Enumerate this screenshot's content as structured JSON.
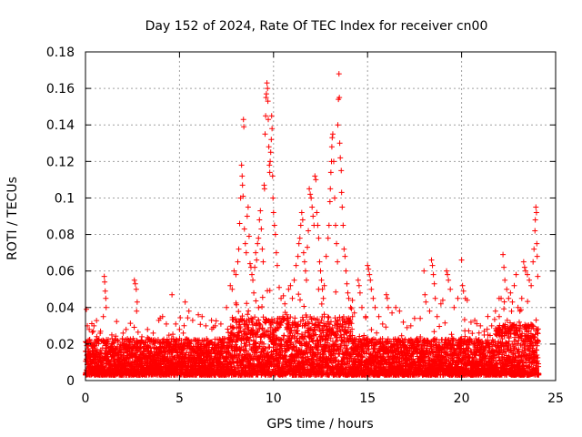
{
  "chart_data": {
    "type": "scatter",
    "title": "Day 152 of 2024, Rate Of TEC Index for receiver cn00",
    "xlabel": "GPS time / hours",
    "ylabel": "ROTI / TECUs",
    "xlim": [
      0,
      25
    ],
    "ylim": [
      0,
      0.18
    ],
    "xticks": [
      0,
      5,
      10,
      15,
      20,
      25
    ],
    "xtick_labels": [
      "0",
      "5",
      "10",
      "15",
      "20",
      "25"
    ],
    "yticks": [
      0,
      0.02,
      0.04,
      0.06,
      0.08,
      0.1,
      0.12,
      0.14,
      0.16,
      0.18
    ],
    "ytick_labels": [
      "0",
      "0.02",
      "0.04",
      "0.06",
      "0.08",
      "0.1",
      "0.12",
      "0.14",
      "0.16",
      "0.18"
    ],
    "grid": true,
    "marker": "+",
    "color": "#ff0000",
    "series": [
      {
        "name": "ROTI",
        "points": [
          [
            0.05,
            0.039
          ],
          [
            0.1,
            0.03
          ],
          [
            0.15,
            0.022
          ],
          [
            0.2,
            0.028
          ],
          [
            0.3,
            0.019
          ],
          [
            0.45,
            0.03
          ],
          [
            0.6,
            0.021
          ],
          [
            0.8,
            0.027
          ],
          [
            0.95,
            0.035
          ],
          [
            1.0,
            0.057
          ],
          [
            1.02,
            0.054
          ],
          [
            1.05,
            0.049
          ],
          [
            1.08,
            0.045
          ],
          [
            1.1,
            0.04
          ],
          [
            1.4,
            0.025
          ],
          [
            1.7,
            0.022
          ],
          [
            2.0,
            0.026
          ],
          [
            2.3,
            0.022
          ],
          [
            2.6,
            0.055
          ],
          [
            2.65,
            0.053
          ],
          [
            2.7,
            0.05
          ],
          [
            2.75,
            0.043
          ],
          [
            2.72,
            0.038
          ],
          [
            3.0,
            0.024
          ],
          [
            3.3,
            0.028
          ],
          [
            3.6,
            0.026
          ],
          [
            3.9,
            0.033
          ],
          [
            4.1,
            0.035
          ],
          [
            4.3,
            0.031
          ],
          [
            4.6,
            0.047
          ],
          [
            4.8,
            0.031
          ],
          [
            5.0,
            0.028
          ],
          [
            5.2,
            0.026
          ],
          [
            5.3,
            0.043
          ],
          [
            5.5,
            0.038
          ],
          [
            5.7,
            0.033
          ],
          [
            6.0,
            0.036
          ],
          [
            6.2,
            0.035
          ],
          [
            6.4,
            0.03
          ],
          [
            6.7,
            0.033
          ],
          [
            6.9,
            0.03
          ],
          [
            7.2,
            0.031
          ],
          [
            7.5,
            0.04
          ],
          [
            7.7,
            0.052
          ],
          [
            7.8,
            0.05
          ],
          [
            7.9,
            0.06
          ],
          [
            8.0,
            0.058
          ],
          [
            8.1,
            0.065
          ],
          [
            8.15,
            0.072
          ],
          [
            8.2,
            0.086
          ],
          [
            8.25,
            0.1
          ],
          [
            8.3,
            0.118
          ],
          [
            8.33,
            0.112
          ],
          [
            8.35,
            0.107
          ],
          [
            8.38,
            0.101
          ],
          [
            8.4,
            0.143
          ],
          [
            8.42,
            0.139
          ],
          [
            8.45,
            0.083
          ],
          [
            8.5,
            0.075
          ],
          [
            8.55,
            0.07
          ],
          [
            8.6,
            0.09
          ],
          [
            8.65,
            0.095
          ],
          [
            8.7,
            0.079
          ],
          [
            8.75,
            0.064
          ],
          [
            8.8,
            0.062
          ],
          [
            8.85,
            0.058
          ],
          [
            8.9,
            0.055
          ],
          [
            8.95,
            0.048
          ],
          [
            9.0,
            0.062
          ],
          [
            9.05,
            0.07
          ],
          [
            9.1,
            0.066
          ],
          [
            9.15,
            0.075
          ],
          [
            9.2,
            0.078
          ],
          [
            9.25,
            0.088
          ],
          [
            9.3,
            0.093
          ],
          [
            9.35,
            0.083
          ],
          [
            9.4,
            0.072
          ],
          [
            9.45,
            0.065
          ],
          [
            9.5,
            0.107
          ],
          [
            9.52,
            0.105
          ],
          [
            9.55,
            0.135
          ],
          [
            9.58,
            0.145
          ],
          [
            9.6,
            0.155
          ],
          [
            9.62,
            0.157
          ],
          [
            9.65,
            0.163
          ],
          [
            9.68,
            0.16
          ],
          [
            9.7,
            0.153
          ],
          [
            9.72,
            0.143
          ],
          [
            9.75,
            0.128
          ],
          [
            9.78,
            0.118
          ],
          [
            9.8,
            0.114
          ],
          [
            9.82,
            0.12
          ],
          [
            9.85,
            0.125
          ],
          [
            9.88,
            0.132
          ],
          [
            9.9,
            0.145
          ],
          [
            9.92,
            0.138
          ],
          [
            9.95,
            0.112
          ],
          [
            9.97,
            0.1
          ],
          [
            10.0,
            0.092
          ],
          [
            10.05,
            0.085
          ],
          [
            10.1,
            0.08
          ],
          [
            10.15,
            0.07
          ],
          [
            10.2,
            0.063
          ],
          [
            10.3,
            0.051
          ],
          [
            10.4,
            0.045
          ],
          [
            10.5,
            0.035
          ],
          [
            10.6,
            0.042
          ],
          [
            10.7,
            0.036
          ],
          [
            10.8,
            0.05
          ],
          [
            10.9,
            0.052
          ],
          [
            11.0,
            0.045
          ],
          [
            11.1,
            0.055
          ],
          [
            11.2,
            0.063
          ],
          [
            11.3,
            0.068
          ],
          [
            11.35,
            0.075
          ],
          [
            11.4,
            0.078
          ],
          [
            11.45,
            0.085
          ],
          [
            11.5,
            0.092
          ],
          [
            11.55,
            0.088
          ],
          [
            11.6,
            0.07
          ],
          [
            11.65,
            0.065
          ],
          [
            11.7,
            0.06
          ],
          [
            11.75,
            0.055
          ],
          [
            11.8,
            0.073
          ],
          [
            11.85,
            0.082
          ],
          [
            11.9,
            0.105
          ],
          [
            11.95,
            0.102
          ],
          [
            12.0,
            0.1
          ],
          [
            12.05,
            0.095
          ],
          [
            12.1,
            0.09
          ],
          [
            12.15,
            0.085
          ],
          [
            12.2,
            0.112
          ],
          [
            12.25,
            0.11
          ],
          [
            12.3,
            0.092
          ],
          [
            12.35,
            0.085
          ],
          [
            12.4,
            0.078
          ],
          [
            12.45,
            0.065
          ],
          [
            12.5,
            0.06
          ],
          [
            12.55,
            0.055
          ],
          [
            12.6,
            0.05
          ],
          [
            12.65,
            0.045
          ],
          [
            12.7,
            0.052
          ],
          [
            12.8,
            0.068
          ],
          [
            12.9,
            0.078
          ],
          [
            12.95,
            0.085
          ],
          [
            13.0,
            0.098
          ],
          [
            13.02,
            0.105
          ],
          [
            13.05,
            0.114
          ],
          [
            13.08,
            0.12
          ],
          [
            13.1,
            0.128
          ],
          [
            13.12,
            0.133
          ],
          [
            13.15,
            0.135
          ],
          [
            13.2,
            0.12
          ],
          [
            13.25,
            0.1
          ],
          [
            13.3,
            0.085
          ],
          [
            13.35,
            0.075
          ],
          [
            13.4,
            0.065
          ],
          [
            13.42,
            0.14
          ],
          [
            13.45,
            0.154
          ],
          [
            13.48,
            0.168
          ],
          [
            13.5,
            0.155
          ],
          [
            13.52,
            0.13
          ],
          [
            13.55,
            0.122
          ],
          [
            13.6,
            0.115
          ],
          [
            13.62,
            0.103
          ],
          [
            13.65,
            0.095
          ],
          [
            13.7,
            0.085
          ],
          [
            13.75,
            0.072
          ],
          [
            13.8,
            0.068
          ],
          [
            13.85,
            0.06
          ],
          [
            13.9,
            0.053
          ],
          [
            13.95,
            0.048
          ],
          [
            14.0,
            0.045
          ],
          [
            14.1,
            0.04
          ],
          [
            14.2,
            0.035
          ],
          [
            14.3,
            0.037
          ],
          [
            14.5,
            0.055
          ],
          [
            14.55,
            0.052
          ],
          [
            14.6,
            0.048
          ],
          [
            14.7,
            0.04
          ],
          [
            14.9,
            0.035
          ],
          [
            15.0,
            0.063
          ],
          [
            15.05,
            0.061
          ],
          [
            15.1,
            0.058
          ],
          [
            15.15,
            0.055
          ],
          [
            15.2,
            0.05
          ],
          [
            15.3,
            0.045
          ],
          [
            15.4,
            0.04
          ],
          [
            15.6,
            0.035
          ],
          [
            15.8,
            0.031
          ],
          [
            16.0,
            0.047
          ],
          [
            16.05,
            0.045
          ],
          [
            16.1,
            0.04
          ],
          [
            16.3,
            0.037
          ],
          [
            16.5,
            0.04
          ],
          [
            16.7,
            0.038
          ],
          [
            16.9,
            0.032
          ],
          [
            17.1,
            0.029
          ],
          [
            17.3,
            0.03
          ],
          [
            17.5,
            0.034
          ],
          [
            17.8,
            0.034
          ],
          [
            18.0,
            0.06
          ],
          [
            18.05,
            0.047
          ],
          [
            18.1,
            0.043
          ],
          [
            18.3,
            0.038
          ],
          [
            18.4,
            0.066
          ],
          [
            18.45,
            0.063
          ],
          [
            18.5,
            0.058
          ],
          [
            18.55,
            0.053
          ],
          [
            18.6,
            0.045
          ],
          [
            18.7,
            0.035
          ],
          [
            18.9,
            0.042
          ],
          [
            19.0,
            0.044
          ],
          [
            19.2,
            0.06
          ],
          [
            19.25,
            0.058
          ],
          [
            19.3,
            0.055
          ],
          [
            19.4,
            0.05
          ],
          [
            19.6,
            0.04
          ],
          [
            19.8,
            0.045
          ],
          [
            20.0,
            0.066
          ],
          [
            20.05,
            0.052
          ],
          [
            20.1,
            0.049
          ],
          [
            20.2,
            0.045
          ],
          [
            20.3,
            0.044
          ],
          [
            20.5,
            0.032
          ],
          [
            20.7,
            0.033
          ],
          [
            21.0,
            0.03
          ],
          [
            21.2,
            0.027
          ],
          [
            21.4,
            0.025
          ],
          [
            21.6,
            0.03
          ],
          [
            21.8,
            0.038
          ],
          [
            22.0,
            0.035
          ],
          [
            22.1,
            0.045
          ],
          [
            22.2,
            0.069
          ],
          [
            22.25,
            0.062
          ],
          [
            22.3,
            0.055
          ],
          [
            22.4,
            0.05
          ],
          [
            22.5,
            0.045
          ],
          [
            22.6,
            0.048
          ],
          [
            22.7,
            0.043
          ],
          [
            22.8,
            0.052
          ],
          [
            22.9,
            0.058
          ],
          [
            23.0,
            0.04
          ],
          [
            23.1,
            0.038
          ],
          [
            23.2,
            0.045
          ],
          [
            23.3,
            0.065
          ],
          [
            23.35,
            0.062
          ],
          [
            23.4,
            0.06
          ],
          [
            23.5,
            0.058
          ],
          [
            23.6,
            0.055
          ],
          [
            23.7,
            0.052
          ],
          [
            23.8,
            0.065
          ],
          [
            23.85,
            0.072
          ],
          [
            23.9,
            0.082
          ],
          [
            23.92,
            0.088
          ],
          [
            23.95,
            0.095
          ],
          [
            23.98,
            0.092
          ],
          [
            24.0,
            0.075
          ],
          [
            24.02,
            0.068
          ],
          [
            24.05,
            0.057
          ]
        ]
      }
    ]
  }
}
